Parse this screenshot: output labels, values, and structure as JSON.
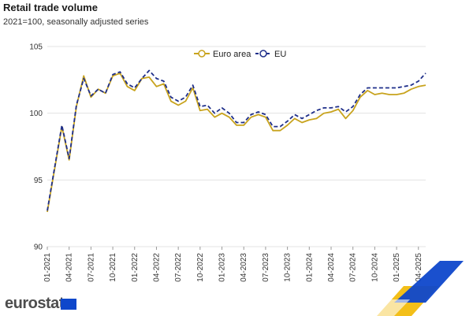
{
  "chart_data": {
    "type": "line",
    "title": "Retail trade volume",
    "subtitle": "2021=100, seasonally adjusted series",
    "ylim": [
      90,
      105
    ],
    "yticks": [
      90,
      95,
      100,
      105
    ],
    "grid": "horizontal",
    "legend_position": "top-center",
    "x_tick_labels": [
      "01-2021",
      "04-2021",
      "07-2021",
      "10-2021",
      "01-2022",
      "04-2022",
      "07-2022",
      "10-2022",
      "01-2023",
      "04-2023",
      "07-2023",
      "10-2023",
      "01-2024",
      "04-2024",
      "07-2024",
      "10-2024",
      "01-2025",
      "04-2025"
    ],
    "x": [
      "01-2021",
      "02-2021",
      "03-2021",
      "04-2021",
      "05-2021",
      "06-2021",
      "07-2021",
      "08-2021",
      "09-2021",
      "10-2021",
      "11-2021",
      "12-2021",
      "01-2022",
      "02-2022",
      "03-2022",
      "04-2022",
      "05-2022",
      "06-2022",
      "07-2022",
      "08-2022",
      "09-2022",
      "10-2022",
      "11-2022",
      "12-2022",
      "01-2023",
      "02-2023",
      "03-2023",
      "04-2023",
      "05-2023",
      "06-2023",
      "07-2023",
      "08-2023",
      "09-2023",
      "10-2023",
      "11-2023",
      "12-2023",
      "01-2024",
      "02-2024",
      "03-2024",
      "04-2024",
      "05-2024",
      "06-2024",
      "07-2024",
      "08-2024",
      "09-2024",
      "10-2024",
      "11-2024",
      "12-2024",
      "01-2025",
      "02-2025",
      "03-2025",
      "04-2025",
      "05-2025"
    ],
    "series": [
      {
        "name": "Euro area",
        "color": "#c8a31d",
        "dash": "solid",
        "values": [
          92.6,
          95.8,
          99.0,
          96.5,
          100.5,
          102.8,
          101.2,
          101.8,
          101.5,
          102.8,
          103.0,
          102.0,
          101.7,
          102.6,
          102.7,
          102.0,
          102.2,
          100.9,
          100.6,
          100.9,
          101.9,
          100.2,
          100.3,
          99.7,
          100.0,
          99.7,
          99.1,
          99.1,
          99.7,
          99.9,
          99.7,
          98.7,
          98.7,
          99.1,
          99.6,
          99.3,
          99.5,
          99.6,
          100.0,
          100.1,
          100.3,
          99.6,
          100.2,
          101.2,
          101.7,
          101.4,
          101.5,
          101.4,
          101.4,
          101.5,
          101.8,
          102.0,
          102.1
        ]
      },
      {
        "name": "EU",
        "color": "#1f2f8a",
        "dash": "dashed",
        "values": [
          92.7,
          95.9,
          99.1,
          96.6,
          100.6,
          102.6,
          101.3,
          101.8,
          101.5,
          102.9,
          103.1,
          102.2,
          101.9,
          102.6,
          103.2,
          102.6,
          102.4,
          101.2,
          100.9,
          101.2,
          102.1,
          100.5,
          100.6,
          100.0,
          100.4,
          100.0,
          99.3,
          99.3,
          99.9,
          100.1,
          99.9,
          99.0,
          99.0,
          99.4,
          99.9,
          99.6,
          99.9,
          100.2,
          100.4,
          100.4,
          100.5,
          100.1,
          100.5,
          101.4,
          101.9,
          101.9,
          101.9,
          101.9,
          101.9,
          102.0,
          102.1,
          102.4,
          103.0
        ]
      }
    ]
  },
  "footer": {
    "logo_text": "eurostat",
    "flag_color": "#0e47cb",
    "stripe_colors": [
      "#f2b800",
      "#0e47cb"
    ]
  }
}
